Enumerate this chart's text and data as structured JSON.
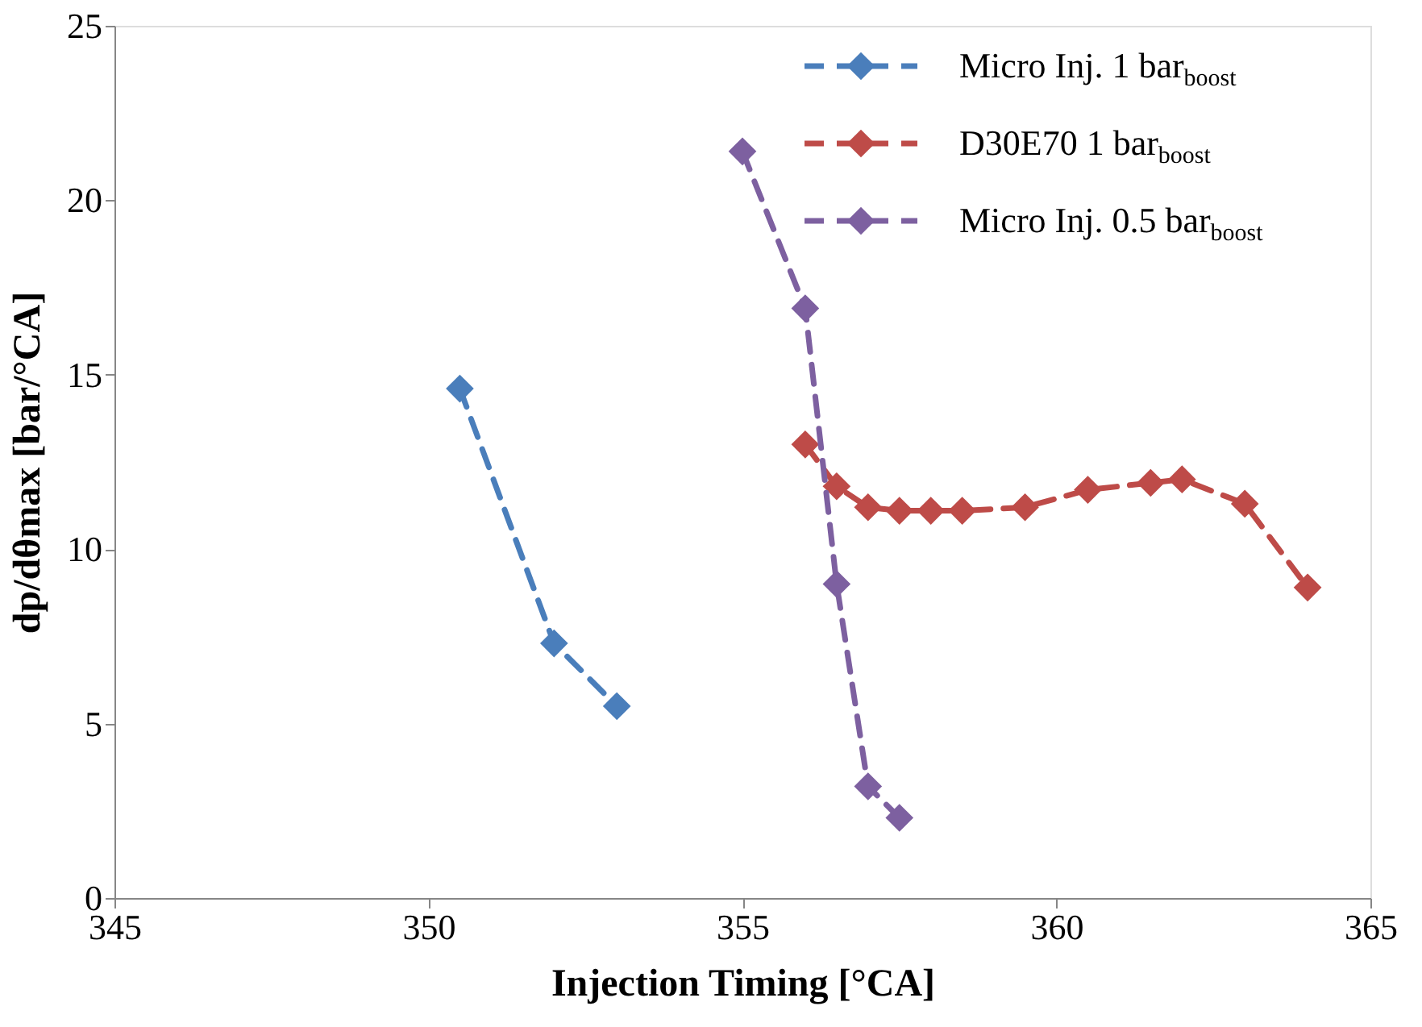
{
  "chart_data": {
    "type": "line",
    "xlabel": "Injection Timing [°CA]",
    "ylabel": "dp/dθmax [bar/°CA]",
    "xlim": [
      345,
      365
    ],
    "xticks": [
      345,
      350,
      355,
      360,
      365
    ],
    "ylim": [
      0,
      25
    ],
    "yticks": [
      0,
      5,
      10,
      15,
      20,
      25
    ],
    "grid": false,
    "legend": "top right",
    "marker": "diamond",
    "line_style": "dashed",
    "series": [
      {
        "name": "Micro Inj. 1 bar$_{boost}$",
        "color": "#4a7ebb",
        "x": [
          350.5,
          352,
          353
        ],
        "values": [
          14.6,
          7.3,
          5.5
        ]
      },
      {
        "name": "D30E70 1 bar$_{boost}$",
        "color": "#be4b48",
        "x": [
          356,
          356.5,
          357,
          357.5,
          358,
          358.5,
          359.5,
          360.5,
          361.5,
          362,
          363,
          364
        ],
        "values": [
          13.0,
          11.8,
          11.2,
          11.1,
          11.1,
          11.1,
          11.2,
          11.7,
          11.9,
          12.0,
          11.3,
          8.9
        ]
      },
      {
        "name": "Micro Inj. 0.5 bar$_{boost}$",
        "color": "#7d60a0",
        "x": [
          355,
          356,
          356.5,
          357,
          357.5
        ],
        "values": [
          21.4,
          16.9,
          9.0,
          3.2,
          2.3
        ]
      }
    ]
  }
}
